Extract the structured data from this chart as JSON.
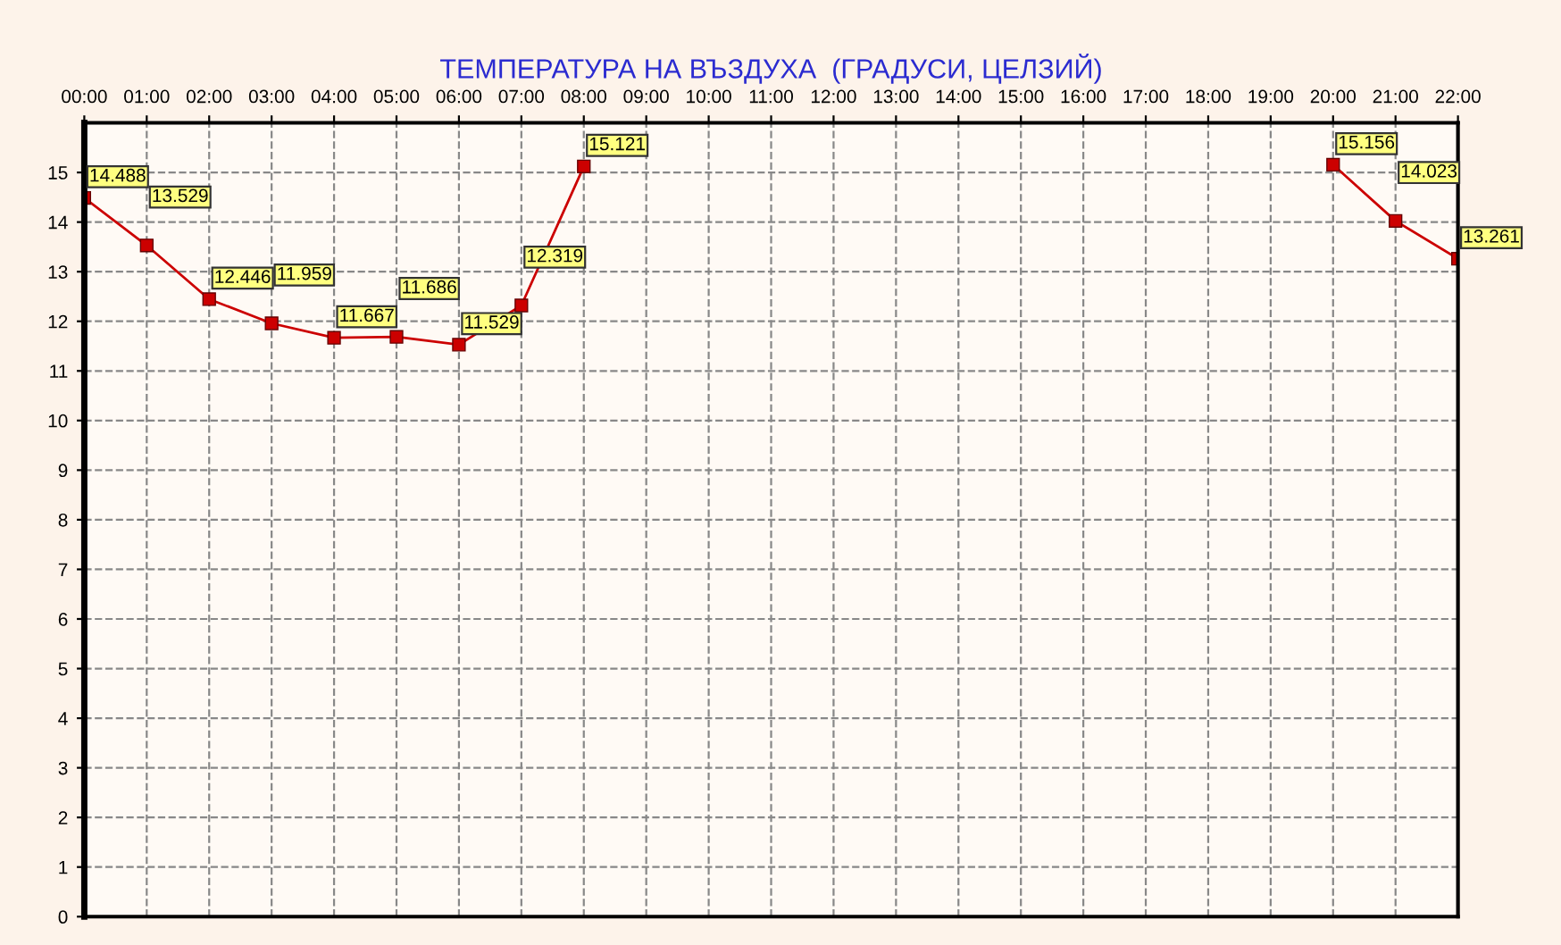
{
  "chart_data": {
    "type": "line",
    "title": "ТЕМПЕРАТУРА НА ВЪЗДУХА  (ГРАДУСИ, ЦЕЛЗИЙ)",
    "x": [
      0,
      1,
      2,
      3,
      4,
      5,
      6,
      7,
      8,
      9,
      10,
      11,
      12,
      13,
      14,
      15,
      16,
      17,
      18,
      19,
      20,
      21,
      22
    ],
    "series": [
      {
        "color": "#cc0000",
        "values": [
          14.488,
          13.529,
          12.446,
          11.959,
          11.667,
          11.686,
          11.529,
          12.319,
          15.121,
          null,
          null,
          null,
          null,
          null,
          null,
          null,
          null,
          null,
          null,
          null,
          15.156,
          14.023,
          13.261
        ]
      }
    ],
    "xlim": [
      0,
      22
    ],
    "xticks": [
      {
        "value": 0,
        "label": "00:00"
      },
      {
        "value": 1,
        "label": "01:00"
      },
      {
        "value": 2,
        "label": "02:00"
      },
      {
        "value": 3,
        "label": "03:00"
      },
      {
        "value": 4,
        "label": "04:00"
      },
      {
        "value": 5,
        "label": "05:00"
      },
      {
        "value": 6,
        "label": "06:00"
      },
      {
        "value": 7,
        "label": "07:00"
      },
      {
        "value": 8,
        "label": "08:00"
      },
      {
        "value": 9,
        "label": "09:00"
      },
      {
        "value": 10,
        "label": "10:00"
      },
      {
        "value": 11,
        "label": "11:00"
      },
      {
        "value": 12,
        "label": "12:00"
      },
      {
        "value": 13,
        "label": "13:00"
      },
      {
        "value": 14,
        "label": "14:00"
      },
      {
        "value": 15,
        "label": "15:00"
      },
      {
        "value": 16,
        "label": "16:00"
      },
      {
        "value": 17,
        "label": "17:00"
      },
      {
        "value": 18,
        "label": "18:00"
      },
      {
        "value": 19,
        "label": "19:00"
      },
      {
        "value": 20,
        "label": "20:00"
      },
      {
        "value": 21,
        "label": "21:00"
      },
      {
        "value": 22,
        "label": "22:00"
      }
    ],
    "ylim": [
      0,
      16
    ],
    "yticks": [
      0,
      1,
      2,
      3,
      4,
      5,
      6,
      7,
      8,
      9,
      10,
      11,
      12,
      13,
      14,
      15
    ],
    "grid": true,
    "marker": "square",
    "line_style": "solid",
    "data_labels": true
  }
}
